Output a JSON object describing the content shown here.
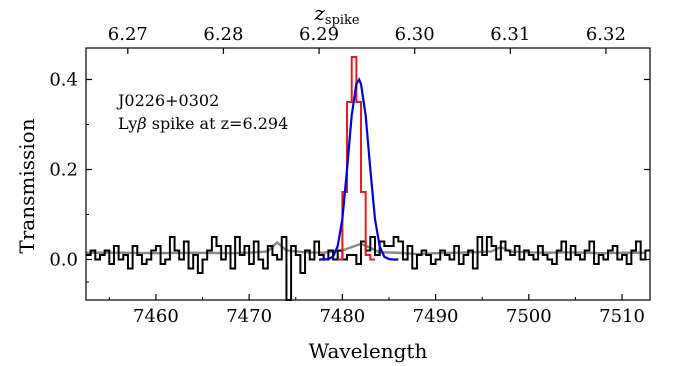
{
  "chart_data": {
    "type": "line",
    "title": "",
    "xlabel": "Wavelength",
    "ylabel": "Transmission",
    "top_xlabel": "z",
    "top_xlabel_sub": "spike",
    "xlim": [
      7452.5,
      7513
    ],
    "ylim": [
      -0.09,
      0.47
    ],
    "x_ticks": [
      7460,
      7470,
      7480,
      7490,
      7500,
      7510
    ],
    "x_tick_labels": [
      "7460",
      "7470",
      "7480",
      "7490",
      "7500",
      "7510"
    ],
    "y_ticks": [
      0.0,
      0.2,
      0.4
    ],
    "y_tick_labels": [
      "0.0",
      "0.2",
      "0.4"
    ],
    "top_ticks": [
      6.27,
      6.28,
      6.29,
      6.3,
      6.31,
      6.32
    ],
    "top_tick_labels": [
      "6.27",
      "6.28",
      "6.29",
      "6.30",
      "6.31",
      "6.32"
    ],
    "grid": false,
    "annotations": [
      "J0226+0302",
      "Lyβ spike at z=6.294"
    ],
    "series": [
      {
        "style": "step",
        "color": "#000000",
        "x": [
          7452.5,
          7453.0,
          7453.5,
          7454.0,
          7454.5,
          7455.0,
          7455.5,
          7456.0,
          7456.5,
          7457.0,
          7457.5,
          7458.0,
          7458.5,
          7459.0,
          7459.5,
          7460.0,
          7460.5,
          7461.0,
          7461.5,
          7462.0,
          7462.5,
          7463.0,
          7463.5,
          7464.0,
          7464.5,
          7465.0,
          7465.5,
          7466.0,
          7466.5,
          7467.0,
          7467.5,
          7468.0,
          7468.5,
          7469.0,
          7469.5,
          7470.0,
          7470.5,
          7471.0,
          7471.5,
          7472.0,
          7472.5,
          7473.0,
          7473.5,
          7474.0,
          7474.5,
          7475.0,
          7475.5,
          7476.0,
          7476.5,
          7477.0,
          7477.5,
          7478.0,
          7478.5,
          7479.0,
          7479.5,
          7480.0,
          7480.5,
          7481.0,
          7481.5,
          7482.0,
          7482.5,
          7483.0,
          7483.5,
          7484.0,
          7484.5,
          7485.0,
          7485.5,
          7486.0,
          7486.5,
          7487.0,
          7487.5,
          7488.0,
          7488.5,
          7489.0,
          7489.5,
          7490.0,
          7490.5,
          7491.0,
          7491.5,
          7492.0,
          7492.5,
          7493.0,
          7493.5,
          7494.0,
          7494.5,
          7495.0,
          7495.5,
          7496.0,
          7496.5,
          7497.0,
          7497.5,
          7498.0,
          7498.5,
          7499.0,
          7499.5,
          7500.0,
          7500.5,
          7501.0,
          7501.5,
          7502.0,
          7502.5,
          7503.0,
          7503.5,
          7504.0,
          7504.5,
          7505.0,
          7505.5,
          7506.0,
          7506.5,
          7507.0,
          7507.5,
          7508.0,
          7508.5,
          7509.0,
          7509.5,
          7510.0,
          7510.5,
          7511.0,
          7511.5,
          7512.0,
          7512.5
        ],
        "values": [
          0.01,
          0.02,
          0.0,
          0.01,
          0.02,
          -0.01,
          0.03,
          0.0,
          0.01,
          -0.02,
          0.03,
          0.01,
          -0.01,
          0.0,
          0.02,
          0.03,
          -0.01,
          0.0,
          0.05,
          0.02,
          0.0,
          0.04,
          -0.02,
          0.01,
          -0.03,
          0.0,
          0.02,
          0.05,
          0.03,
          0.0,
          0.03,
          -0.02,
          0.05,
          0.01,
          0.03,
          -0.01,
          0.04,
          0.0,
          -0.02,
          0.03,
          0.01,
          0.0,
          0.05,
          -0.09,
          0.03,
          0.01,
          -0.03,
          0.02,
          0.0,
          0.04,
          0.01,
          0.0,
          0.02,
          0.0,
          0.02,
          0.0,
          0.01,
          0.01,
          -0.01,
          0.04,
          0.02,
          0.05,
          0.01,
          0.04,
          0.03,
          0.03,
          0.05,
          0.04,
          0.0,
          0.03,
          -0.02,
          0.01,
          0.02,
          0.01,
          -0.01,
          0.0,
          0.02,
          0.01,
          0.0,
          0.03,
          -0.01,
          0.01,
          0.02,
          -0.02,
          0.05,
          0.01,
          0.05,
          0.03,
          0.0,
          0.04,
          0.02,
          0.01,
          0.03,
          0.0,
          0.02,
          0.01,
          0.0,
          0.03,
          0.01,
          0.0,
          -0.01,
          0.02,
          0.04,
          0.0,
          0.03,
          0.01,
          0.0,
          0.02,
          0.04,
          -0.01,
          0.01,
          0.0,
          0.02,
          0.03,
          0.0,
          0.01,
          -0.01,
          0.02,
          0.04,
          0.0,
          0.02
        ]
      },
      {
        "style": "step",
        "color": "#e41a1c",
        "x": [
          7479.5,
          7480.0,
          7480.5,
          7481.0,
          7481.5,
          7482.0,
          7482.5,
          7483.0
        ],
        "values": [
          0.0,
          0.15,
          0.35,
          0.45,
          0.35,
          0.15,
          0.01,
          0.0
        ]
      },
      {
        "style": "line",
        "color": "#0000dd",
        "x": [
          7477.5,
          7478.0,
          7478.5,
          7479.0,
          7479.5,
          7480.0,
          7480.5,
          7481.0,
          7481.5,
          7481.8,
          7482.0,
          7482.5,
          7483.0,
          7483.5,
          7484.0,
          7484.5,
          7485.0,
          7485.5,
          7486.0
        ],
        "values": [
          0.0,
          0.0,
          0.001,
          0.006,
          0.03,
          0.09,
          0.2,
          0.32,
          0.39,
          0.4,
          0.39,
          0.32,
          0.2,
          0.09,
          0.03,
          0.006,
          0.001,
          0.0,
          0.0
        ]
      },
      {
        "style": "line",
        "color": "#888888",
        "x": [
          7452.5,
          7456,
          7460,
          7464,
          7468,
          7470,
          7472,
          7473,
          7474,
          7476,
          7478,
          7480,
          7482,
          7483,
          7484,
          7486,
          7488,
          7490,
          7492,
          7494,
          7496,
          7497,
          7498,
          7500,
          7502,
          7504,
          7506,
          7508,
          7510,
          7512.5
        ],
        "values": [
          0.015,
          0.015,
          0.014,
          0.015,
          0.014,
          0.015,
          0.018,
          0.038,
          0.02,
          0.016,
          0.015,
          0.02,
          0.035,
          0.026,
          0.016,
          0.015,
          0.012,
          0.014,
          0.015,
          0.016,
          0.018,
          0.028,
          0.018,
          0.016,
          0.015,
          0.016,
          0.015,
          0.014,
          0.015,
          0.015
        ]
      }
    ]
  }
}
